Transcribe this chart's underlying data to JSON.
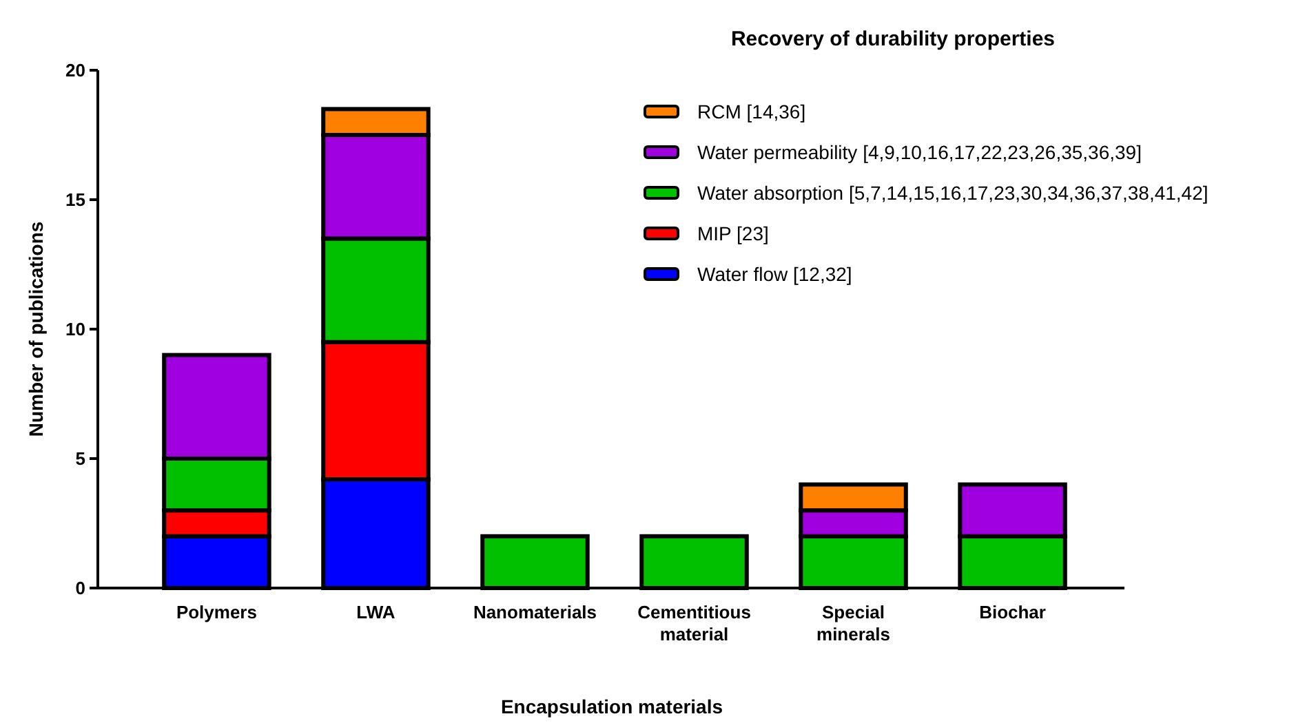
{
  "chart_data": {
    "type": "bar",
    "stacked": true,
    "legend_title": "Recovery of durability properties",
    "xlabel": "Encapsulation materials",
    "ylabel": "Number of publications",
    "categories": [
      "Polymers",
      "LWA",
      "Nanomaterials",
      "Cementitious material",
      "Special minerals",
      "Biochar"
    ],
    "ylim": [
      0,
      20
    ],
    "yticks": [
      0,
      5,
      10,
      15,
      20
    ],
    "legend": "top right",
    "series": [
      {
        "name": "Water flow [12,32]",
        "color": "#0000ff",
        "values": [
          2,
          4.2,
          0,
          0,
          0,
          0
        ]
      },
      {
        "name": "MIP [23]",
        "color": "#ff0000",
        "values": [
          1,
          5.3,
          0,
          0,
          0,
          0
        ]
      },
      {
        "name": "Water absorption [5,7,14,15,16,17,23,30,34,36,37,38,41,42]",
        "color": "#00c000",
        "values": [
          2,
          4,
          2,
          2,
          2,
          2
        ]
      },
      {
        "name": "Water permeability [4,9,10,16,17,22,23,26,35,36,39]",
        "color": "#a000e0",
        "values": [
          4,
          4,
          0,
          0,
          1,
          2
        ]
      },
      {
        "name": "RCM [14,36]",
        "color": "#ff8000",
        "values": [
          0,
          1,
          0,
          0,
          1,
          0
        ]
      }
    ]
  }
}
